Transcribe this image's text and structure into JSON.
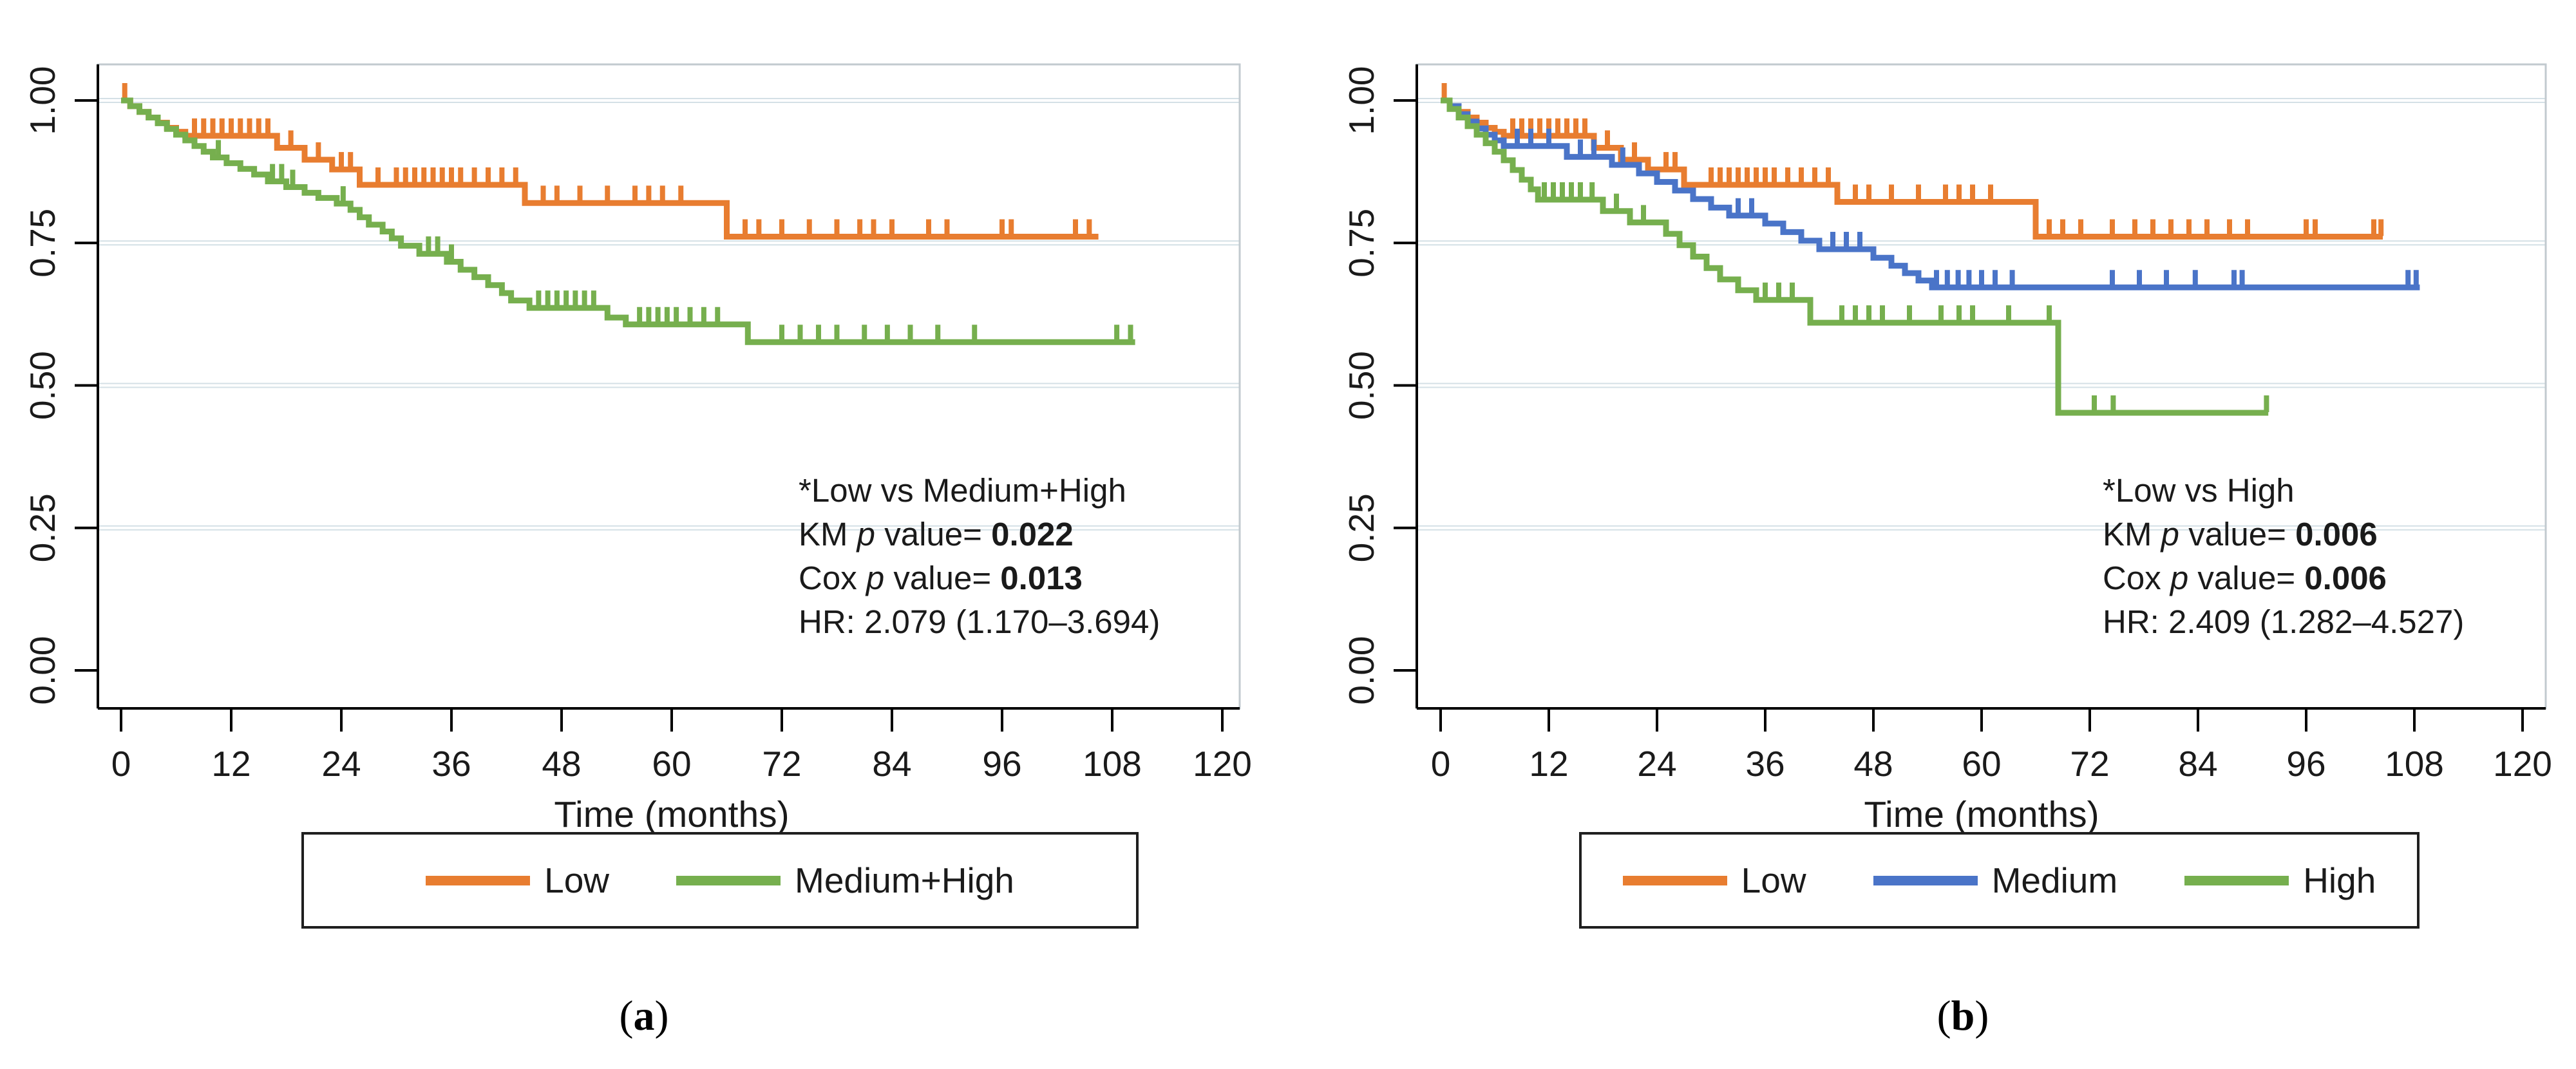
{
  "figure": {
    "background": "#ffffff",
    "grid_color": "#d4e0e6",
    "frame_color": "#c2cacf",
    "axis_color": "#000000",
    "text_color": "#1a1a1a"
  },
  "chart_data": [
    {
      "type": "line",
      "subtype": "kaplan_meier_step",
      "panel": "a",
      "caption": {
        "open": "(",
        "letter": "a",
        "close": ")"
      },
      "xlabel": "Time (months)",
      "x_ticks": [
        0,
        12,
        24,
        36,
        48,
        60,
        72,
        84,
        96,
        108,
        120
      ],
      "y_tick_labels": [
        "1.00",
        "0.75",
        "0.50",
        "0.25",
        "0.00"
      ],
      "y_tick_values": [
        1.0,
        0.75,
        0.5,
        0.25,
        0.0
      ],
      "xlim": [
        0,
        126
      ],
      "ylim": [
        0,
        1.06
      ],
      "grid": "horizontal gridlines at 0.25, 0.50, 0.75, 1.00",
      "legend_position": "bottom",
      "annotation": {
        "comparison": "*Low vs Medium+High",
        "km_prefix": "KM ",
        "km_p": "p",
        "km_mid": " value= ",
        "km_value": "0.022",
        "cox_prefix": "Cox ",
        "cox_p": "p",
        "cox_mid": " value= ",
        "cox_value": "0.013",
        "hr_line": "HR: 2.079 (1.170–3.694)"
      },
      "legend": [
        {
          "label": "Low",
          "color": "#E87D30"
        },
        {
          "label": "Medium+High",
          "color": "#76AF4E"
        }
      ],
      "series": [
        {
          "name": "Low",
          "color": "#E87D30",
          "steps": [
            [
              0,
              1.0
            ],
            [
              1,
              0.99
            ],
            [
              2,
              0.98
            ],
            [
              3,
              0.97
            ],
            [
              4,
              0.961
            ],
            [
              5,
              0.952
            ],
            [
              6,
              0.945
            ],
            [
              7,
              0.938
            ],
            [
              17,
              0.917
            ],
            [
              20,
              0.896
            ],
            [
              23,
              0.879
            ],
            [
              26,
              0.852
            ],
            [
              44,
              0.82
            ],
            [
              66,
              0.761
            ]
          ],
          "end_t": 106.5,
          "censors": [
            0.4,
            8,
            9,
            10,
            11,
            12,
            13,
            14,
            15,
            16,
            18.5,
            21.5,
            24,
            25,
            28,
            30,
            31,
            32,
            33,
            34,
            35,
            36,
            37,
            38.5,
            40,
            41.5,
            43,
            46,
            47.5,
            50,
            53,
            56,
            57.5,
            59,
            61,
            68,
            69.5,
            72,
            75,
            78,
            80.5,
            82,
            84,
            88,
            90,
            96,
            97,
            104,
            105.5
          ]
        },
        {
          "name": "Medium+High",
          "color": "#76AF4E",
          "steps": [
            [
              0,
              1.0
            ],
            [
              1,
              0.99
            ],
            [
              2,
              0.98
            ],
            [
              3,
              0.97
            ],
            [
              4,
              0.96
            ],
            [
              5,
              0.95
            ],
            [
              6,
              0.94
            ],
            [
              7,
              0.93
            ],
            [
              8,
              0.92
            ],
            [
              9,
              0.91
            ],
            [
              10,
              0.9
            ],
            [
              11.5,
              0.89
            ],
            [
              13,
              0.88
            ],
            [
              14.5,
              0.87
            ],
            [
              16,
              0.858
            ],
            [
              18,
              0.848
            ],
            [
              20,
              0.838
            ],
            [
              21.5,
              0.829
            ],
            [
              23.5,
              0.819
            ],
            [
              25,
              0.808
            ],
            [
              26,
              0.795
            ],
            [
              27,
              0.782
            ],
            [
              28.5,
              0.77
            ],
            [
              29.5,
              0.758
            ],
            [
              30.5,
              0.745
            ],
            [
              32.5,
              0.731
            ],
            [
              35.5,
              0.717
            ],
            [
              37,
              0.703
            ],
            [
              38.5,
              0.69
            ],
            [
              40,
              0.676
            ],
            [
              41.5,
              0.662
            ],
            [
              42.5,
              0.649
            ],
            [
              44.5,
              0.636
            ],
            [
              53,
              0.619
            ],
            [
              55,
              0.607
            ],
            [
              68.3,
              0.576
            ]
          ],
          "end_t": 110.5,
          "censors": [
            10.6,
            16.5,
            17.5,
            18.7,
            24.2,
            33.5,
            34.5,
            36,
            45.5,
            46.5,
            47.5,
            48.5,
            49.5,
            50.5,
            51.5,
            56.5,
            57.5,
            58.5,
            59.5,
            60.5,
            62,
            63.5,
            65,
            72,
            74,
            76,
            78,
            81,
            83.5,
            86,
            89,
            93,
            108.5,
            110
          ]
        }
      ]
    },
    {
      "type": "line",
      "subtype": "kaplan_meier_step",
      "panel": "b",
      "caption": {
        "open": "(",
        "letter": "b",
        "close": ")"
      },
      "xlabel": "Time (months)",
      "x_ticks": [
        0,
        12,
        24,
        36,
        48,
        60,
        72,
        84,
        96,
        108,
        120
      ],
      "y_tick_labels": [
        "1.00",
        "0.75",
        "0.50",
        "0.25",
        "0.00"
      ],
      "y_tick_values": [
        1.0,
        0.75,
        0.5,
        0.25,
        0.0
      ],
      "xlim": [
        0,
        126
      ],
      "ylim": [
        0,
        1.06
      ],
      "grid": "horizontal gridlines at 0.25, 0.50, 0.75, 1.00",
      "legend_position": "bottom",
      "annotation": {
        "comparison": "*Low vs High",
        "km_prefix": "KM ",
        "km_p": "p",
        "km_mid": " value= ",
        "km_value": "0.006",
        "cox_prefix": "Cox ",
        "cox_p": "p",
        "cox_mid": " value= ",
        "cox_value": "0.006",
        "hr_line": "HR: 2.409 (1.282–4.527)"
      },
      "legend": [
        {
          "label": "Low",
          "color": "#E87D30"
        },
        {
          "label": "Medium",
          "color": "#4A74C8"
        },
        {
          "label": "High",
          "color": "#76AF4E"
        }
      ],
      "series": [
        {
          "name": "Low",
          "color": "#E87D30",
          "steps": [
            [
              0,
              1.0
            ],
            [
              1,
              0.99
            ],
            [
              2,
              0.98
            ],
            [
              3,
              0.97
            ],
            [
              4,
              0.961
            ],
            [
              5,
              0.952
            ],
            [
              6,
              0.945
            ],
            [
              7,
              0.938
            ],
            [
              17,
              0.917
            ],
            [
              20,
              0.896
            ],
            [
              23,
              0.879
            ],
            [
              27,
              0.852
            ],
            [
              44,
              0.822
            ],
            [
              66,
              0.761
            ]
          ],
          "end_t": 104.5,
          "censors": [
            0.4,
            8,
            9,
            10,
            11,
            12,
            13,
            14,
            15,
            16,
            18.5,
            21.5,
            25,
            26,
            30,
            31,
            32,
            33,
            34,
            35,
            36,
            37,
            38.5,
            40,
            41.5,
            43,
            46,
            47.5,
            50,
            53,
            56,
            57.5,
            59,
            61,
            67.5,
            69,
            71,
            74.5,
            77,
            79,
            81,
            83,
            85,
            87.5,
            89.5,
            96,
            97,
            103.5,
            104.3
          ]
        },
        {
          "name": "Medium",
          "color": "#4A74C8",
          "steps": [
            [
              0,
              1.0
            ],
            [
              1,
              0.99
            ],
            [
              2,
              0.976
            ],
            [
              3,
              0.963
            ],
            [
              4,
              0.951
            ],
            [
              5,
              0.94
            ],
            [
              6,
              0.93
            ],
            [
              7,
              0.92
            ],
            [
              14,
              0.901
            ],
            [
              19,
              0.887
            ],
            [
              22,
              0.872
            ],
            [
              24,
              0.857
            ],
            [
              26,
              0.842
            ],
            [
              28,
              0.827
            ],
            [
              30,
              0.812
            ],
            [
              32,
              0.798
            ],
            [
              36,
              0.784
            ],
            [
              38,
              0.769
            ],
            [
              40,
              0.754
            ],
            [
              42,
              0.739
            ],
            [
              48,
              0.724
            ],
            [
              50,
              0.71
            ],
            [
              51.5,
              0.697
            ],
            [
              53,
              0.684
            ],
            [
              54.5,
              0.672
            ]
          ],
          "end_t": 108.6,
          "censors": [
            8.5,
            10,
            12,
            15.5,
            17,
            20.2,
            33,
            34.5,
            43.5,
            45,
            46.5,
            55,
            56.2,
            57.4,
            58.6,
            60,
            61.5,
            63.4,
            74.5,
            77.5,
            80.5,
            83.7,
            88,
            88.9,
            107.3,
            108.2
          ]
        },
        {
          "name": "High",
          "color": "#76AF4E",
          "steps": [
            [
              0,
              1.0
            ],
            [
              1,
              0.985
            ],
            [
              2,
              0.97
            ],
            [
              3,
              0.955
            ],
            [
              4,
              0.94
            ],
            [
              5,
              0.925
            ],
            [
              6,
              0.91
            ],
            [
              7,
              0.895
            ],
            [
              8,
              0.878
            ],
            [
              9,
              0.861
            ],
            [
              10,
              0.844
            ],
            [
              10.8,
              0.826
            ],
            [
              18,
              0.806
            ],
            [
              21,
              0.786
            ],
            [
              25,
              0.766
            ],
            [
              26.5,
              0.746
            ],
            [
              28,
              0.726
            ],
            [
              29.5,
              0.706
            ],
            [
              31,
              0.686
            ],
            [
              33,
              0.667
            ],
            [
              35,
              0.65
            ],
            [
              41,
              0.61
            ],
            [
              68.5,
              0.452
            ]
          ],
          "end_t": 91.8,
          "censors": [
            11.5,
            12.5,
            13.5,
            14.5,
            15.5,
            16.8,
            19.5,
            22.5,
            36,
            37.5,
            39,
            44.5,
            46,
            47.5,
            49,
            52,
            55.5,
            57.5,
            59,
            63,
            67.5,
            72.5,
            74.6,
            91.6
          ]
        }
      ]
    }
  ]
}
